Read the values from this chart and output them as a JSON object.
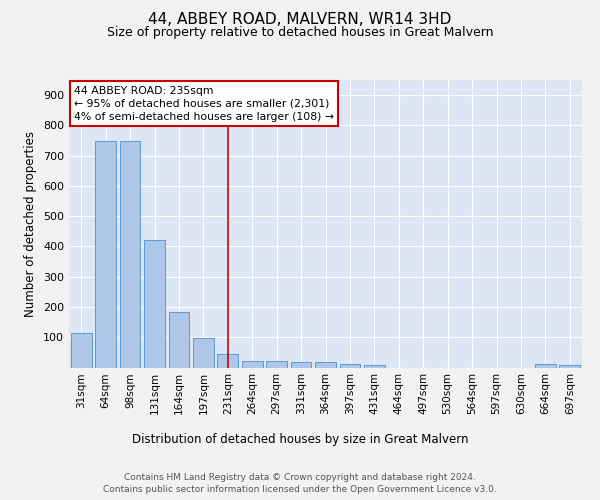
{
  "title": "44, ABBEY ROAD, MALVERN, WR14 3HD",
  "subtitle": "Size of property relative to detached houses in Great Malvern",
  "xlabel": "Distribution of detached houses by size in Great Malvern",
  "ylabel": "Number of detached properties",
  "categories": [
    "31sqm",
    "64sqm",
    "98sqm",
    "131sqm",
    "164sqm",
    "197sqm",
    "231sqm",
    "264sqm",
    "297sqm",
    "331sqm",
    "364sqm",
    "397sqm",
    "431sqm",
    "464sqm",
    "497sqm",
    "530sqm",
    "564sqm",
    "597sqm",
    "630sqm",
    "664sqm",
    "697sqm"
  ],
  "values": [
    113,
    748,
    748,
    420,
    185,
    97,
    45,
    20,
    22,
    18,
    18,
    10,
    7,
    0,
    0,
    0,
    0,
    0,
    0,
    10,
    8
  ],
  "bar_color": "#aec6e8",
  "bar_edge_color": "#5b9bd5",
  "background_color": "#dce6f5",
  "fig_background_color": "#f2f2f2",
  "red_line_index": 6,
  "annotation_text": "44 ABBEY ROAD: 235sqm\n← 95% of detached houses are smaller (2,301)\n4% of semi-detached houses are larger (108) →",
  "annotation_box_color": "#ffffff",
  "annotation_box_edge_color": "#cc0000",
  "ylim": [
    0,
    950
  ],
  "yticks": [
    0,
    100,
    200,
    300,
    400,
    500,
    600,
    700,
    800,
    900
  ],
  "footer_line1": "Contains HM Land Registry data © Crown copyright and database right 2024.",
  "footer_line2": "Contains public sector information licensed under the Open Government Licence v3.0."
}
